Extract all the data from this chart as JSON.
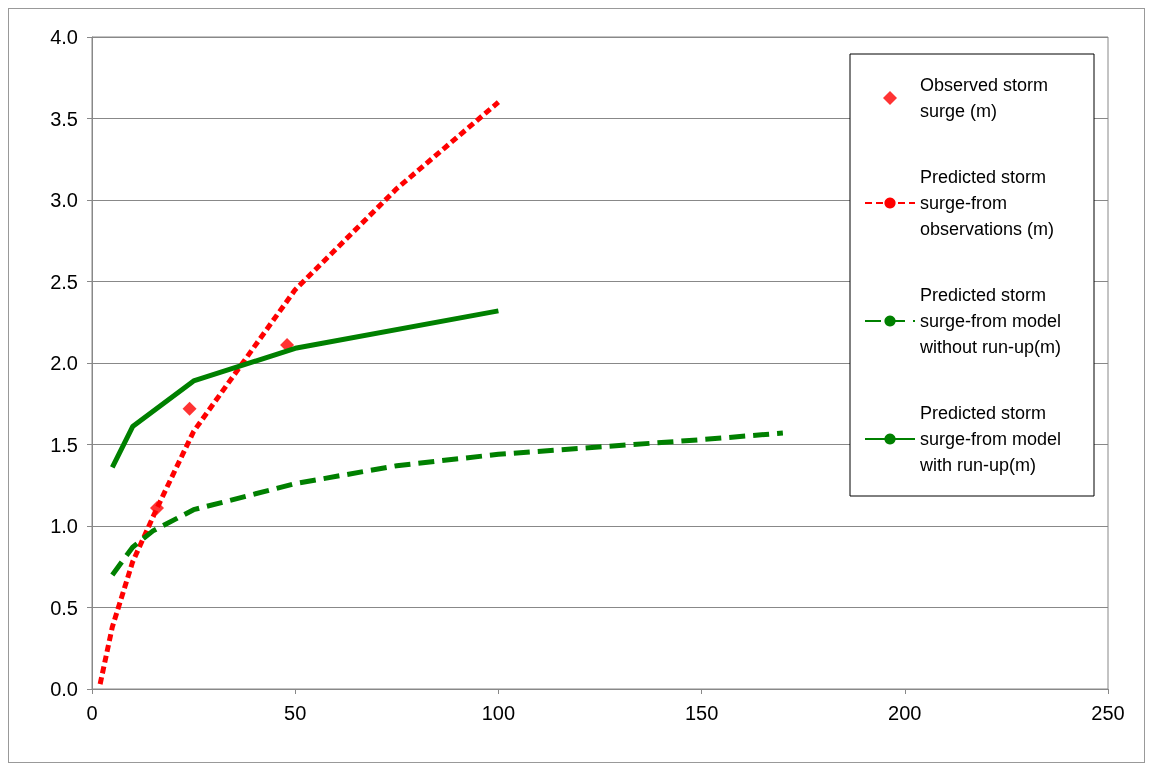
{
  "chart_data": {
    "type": "scatter",
    "xlim": [
      0,
      250
    ],
    "xticks": [
      0,
      50,
      100,
      150,
      200,
      250
    ],
    "ylim": [
      0,
      4
    ],
    "yticks": [
      {
        "value": 0,
        "label": "0.0"
      },
      {
        "value": 0.5,
        "label": "0.5"
      },
      {
        "value": 1,
        "label": "1.0"
      },
      {
        "value": 1.5,
        "label": "1.5"
      },
      {
        "value": 2,
        "label": "2.0"
      },
      {
        "value": 2.5,
        "label": "2.5"
      },
      {
        "value": 3,
        "label": "3.0"
      },
      {
        "value": 3.5,
        "label": "3.5"
      },
      {
        "value": 4,
        "label": "4.0"
      }
    ],
    "grid": "y",
    "legend": "top right",
    "series": [
      {
        "name": "Observed storm surge (m)",
        "marker": "diamond",
        "color": "#ff0000",
        "x": [
          16,
          24,
          48
        ],
        "values": [
          1.11,
          1.72,
          2.11
        ]
      },
      {
        "name": "Predicted storm surge-from observations (m)",
        "type": "line",
        "marker": "none",
        "line_style": "dotted",
        "color": "#ff0000",
        "x": [
          2,
          5,
          10,
          16,
          25,
          50,
          75,
          100
        ],
        "values": [
          0.03,
          0.38,
          0.78,
          1.11,
          1.58,
          2.45,
          3.07,
          3.6
        ]
      },
      {
        "name": "Predicted storm surge-from model without run-up(m)",
        "type": "line",
        "marker": "none",
        "line_style": "dashed",
        "color": "#008000",
        "x": [
          5,
          10,
          15,
          25,
          50,
          75,
          100,
          150,
          170
        ],
        "values": [
          0.7,
          0.87,
          0.97,
          1.1,
          1.26,
          1.37,
          1.44,
          1.53,
          1.57
        ]
      },
      {
        "name": "Predicted storm surge-from model with run-up(m)",
        "type": "line",
        "marker": "none",
        "line_style": "solid",
        "color": "#008000",
        "x": [
          5,
          10,
          25,
          50,
          100
        ],
        "values": [
          1.36,
          1.61,
          1.89,
          2.09,
          2.32
        ]
      }
    ]
  }
}
